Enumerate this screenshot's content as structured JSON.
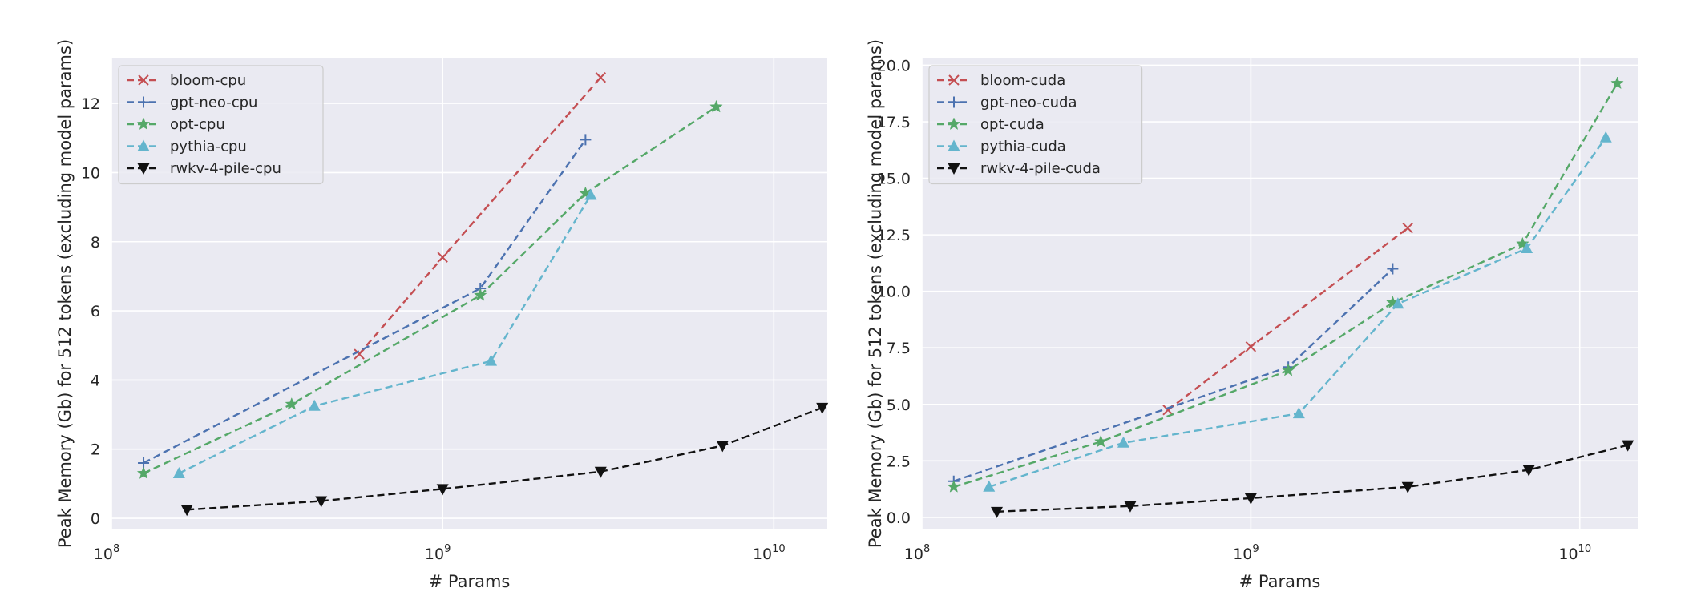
{
  "chart_data": [
    {
      "type": "line",
      "x_scale": "log",
      "xlabel": "# Params",
      "ylabel": "Peak Memory (Gb) for 512 tokens (excluding model params)",
      "xlim": [
        100000000,
        14500000000
      ],
      "ylim": [
        -0.3,
        13.3
      ],
      "x_ticks": [
        {
          "base": "10",
          "exp": "8",
          "value": 100000000
        },
        {
          "base": "10",
          "exp": "9",
          "value": 1000000000
        },
        {
          "base": "10",
          "exp": "10",
          "value": 10000000000
        }
      ],
      "y_ticks": [
        {
          "value": 0,
          "label": "0"
        },
        {
          "value": 2,
          "label": "2"
        },
        {
          "value": 4,
          "label": "4"
        },
        {
          "value": 6,
          "label": "6"
        },
        {
          "value": 8,
          "label": "8"
        },
        {
          "value": 10,
          "label": "10"
        },
        {
          "value": 12,
          "label": "12"
        }
      ],
      "grid": true,
      "legend_position": "top-left",
      "series": [
        {
          "name": "bloom-cpu",
          "color": "#c44e52",
          "marker": "x",
          "points": [
            [
              560000000,
              4.75
            ],
            [
              1000000000,
              7.55
            ],
            [
              3000000000,
              12.75
            ]
          ]
        },
        {
          "name": "gpt-neo-cpu",
          "color": "#4c72b0",
          "marker": "plus",
          "points": [
            [
              125000000,
              1.6
            ],
            [
              1300000000,
              6.65
            ],
            [
              2700000000,
              10.95
            ]
          ]
        },
        {
          "name": "opt-cpu",
          "color": "#55a868",
          "marker": "star",
          "points": [
            [
              125000000,
              1.3
            ],
            [
              350000000,
              3.3
            ],
            [
              1300000000,
              6.45
            ],
            [
              2700000000,
              9.4
            ],
            [
              6700000000,
              11.9
            ]
          ]
        },
        {
          "name": "pythia-cpu",
          "color": "#64b5cd",
          "marker": "triangle-up",
          "points": [
            [
              160000000,
              1.3
            ],
            [
              410000000,
              3.25
            ],
            [
              1400000000,
              4.55
            ],
            [
              2800000000,
              9.35
            ]
          ]
        },
        {
          "name": "rwkv-4-pile-cpu",
          "color": "#111111",
          "marker": "triangle-down",
          "points": [
            [
              169000000,
              0.25
            ],
            [
              430000000,
              0.5
            ],
            [
              1000000000,
              0.85
            ],
            [
              3000000000,
              1.35
            ],
            [
              7000000000,
              2.1
            ],
            [
              14000000000,
              3.2
            ]
          ]
        }
      ]
    },
    {
      "type": "line",
      "x_scale": "log",
      "xlabel": "# Params",
      "ylabel": "Peak Memory (Gb) for 512 tokens (excluding model params)",
      "xlim": [
        100000000,
        15000000000
      ],
      "ylim": [
        -0.5,
        20.3
      ],
      "x_ticks": [
        {
          "base": "10",
          "exp": "8",
          "value": 100000000
        },
        {
          "base": "10",
          "exp": "9",
          "value": 1000000000
        },
        {
          "base": "10",
          "exp": "10",
          "value": 10000000000
        }
      ],
      "y_ticks": [
        {
          "value": 0,
          "label": "0.0"
        },
        {
          "value": 2.5,
          "label": "2.5"
        },
        {
          "value": 5,
          "label": "5.0"
        },
        {
          "value": 7.5,
          "label": "7.5"
        },
        {
          "value": 10,
          "label": "10.0"
        },
        {
          "value": 12.5,
          "label": "12.5"
        },
        {
          "value": 15,
          "label": "15.0"
        },
        {
          "value": 17.5,
          "label": "17.5"
        },
        {
          "value": 20,
          "label": "20.0"
        }
      ],
      "grid": true,
      "legend_position": "top-left",
      "series": [
        {
          "name": "bloom-cuda",
          "color": "#c44e52",
          "marker": "x",
          "points": [
            [
              560000000,
              4.75
            ],
            [
              1000000000,
              7.55
            ],
            [
              3000000000,
              12.8
            ]
          ]
        },
        {
          "name": "gpt-neo-cuda",
          "color": "#4c72b0",
          "marker": "plus",
          "points": [
            [
              125000000,
              1.6
            ],
            [
              1300000000,
              6.65
            ],
            [
              2700000000,
              11.0
            ]
          ]
        },
        {
          "name": "opt-cuda",
          "color": "#55a868",
          "marker": "star",
          "points": [
            [
              125000000,
              1.35
            ],
            [
              350000000,
              3.35
            ],
            [
              1300000000,
              6.5
            ],
            [
              2700000000,
              9.5
            ],
            [
              6700000000,
              12.1
            ],
            [
              13000000000,
              19.2
            ]
          ]
        },
        {
          "name": "pythia-cuda",
          "color": "#64b5cd",
          "marker": "triangle-up",
          "points": [
            [
              160000000,
              1.35
            ],
            [
              410000000,
              3.3
            ],
            [
              1400000000,
              4.6
            ],
            [
              2800000000,
              9.45
            ],
            [
              6900000000,
              11.9
            ],
            [
              12000000000,
              16.8
            ]
          ]
        },
        {
          "name": "rwkv-4-pile-cuda",
          "color": "#111111",
          "marker": "triangle-down",
          "points": [
            [
              169000000,
              0.25
            ],
            [
              430000000,
              0.5
            ],
            [
              1000000000,
              0.85
            ],
            [
              3000000000,
              1.35
            ],
            [
              7000000000,
              2.1
            ],
            [
              14000000000,
              3.2
            ]
          ]
        }
      ]
    }
  ]
}
